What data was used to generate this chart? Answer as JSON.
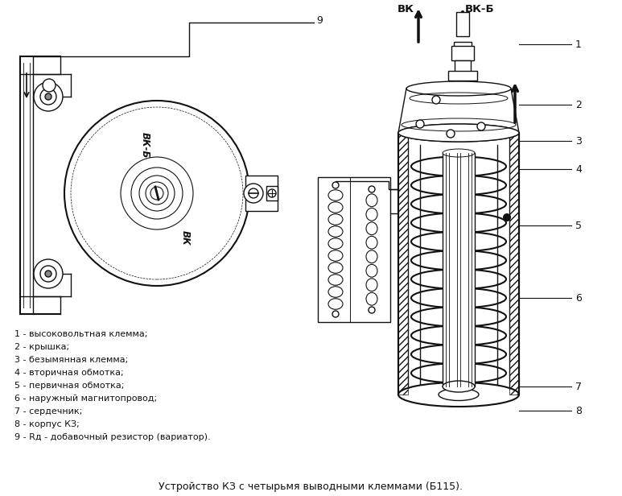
{
  "title": "Устройство КЗ с четырьмя выводными клеммами (Б115).",
  "title_fontsize": 9,
  "bg_color": "#f5f5f0",
  "legend_items": [
    "1 - высоковольтная клемма;",
    "2 - крышка;",
    "3 - безымянная клемма;",
    "4 - вторичная обмотка;",
    "5 - первичная обмотка;",
    "6 - наружный магнитопровод;",
    "7 - сердечник;",
    "8 - корпус КЗ;",
    "9 - Rд - добавочный резистор (вариатор)."
  ],
  "legend_fontsize": 8.0,
  "label_vkb": "ВК-Б",
  "label_vk": "ВК"
}
